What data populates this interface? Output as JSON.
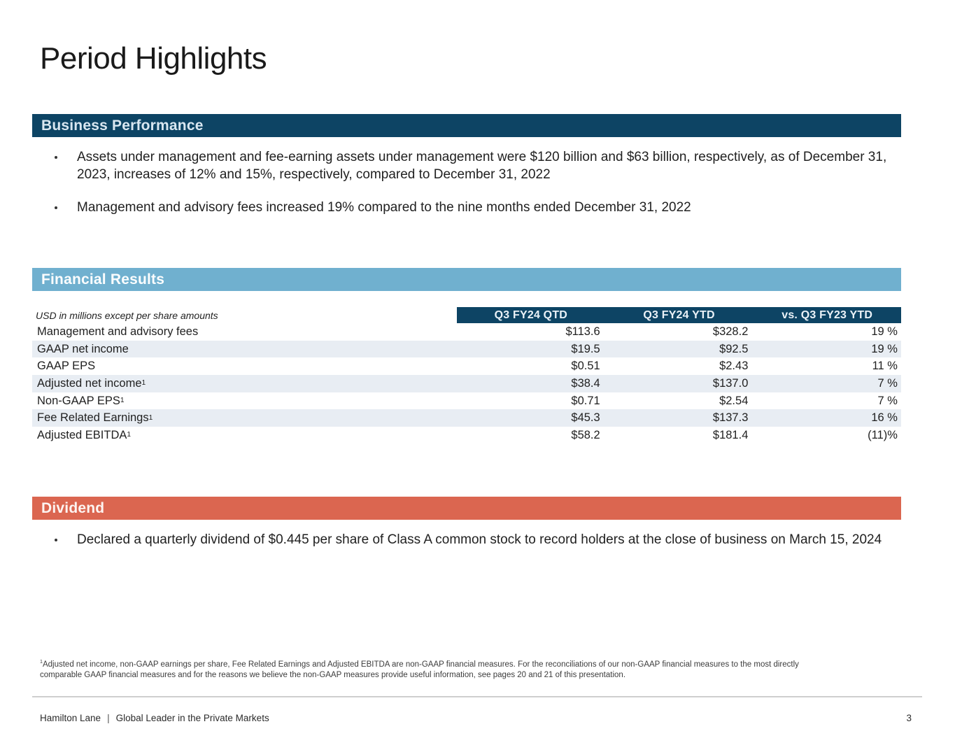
{
  "page": {
    "title": "Period Highlights",
    "page_number": "3"
  },
  "colors": {
    "dark_blue": "#0d4464",
    "light_blue": "#70b0cf",
    "coral": "#db6650",
    "row_stripe": "#e8edf3",
    "band_text": "#d9e7f1",
    "text": "#212121"
  },
  "sections": {
    "business_performance": {
      "title": "Business Performance",
      "bullets": [
        "Assets under management and fee-earning assets under management were $120 billion and $63 billion, respectively, as of December 31, 2023, increases of 12% and 15%, respectively, compared to December 31, 2022",
        "Management and advisory fees increased 19% compared to the nine months ended December 31, 2022"
      ]
    },
    "financial_results": {
      "title": "Financial Results",
      "table": {
        "note": "USD in millions except per share amounts",
        "columns": [
          "Q3 FY24 QTD",
          "Q3 FY24 YTD",
          "vs. Q3 FY23 YTD"
        ],
        "rows": [
          {
            "label": "Management and advisory fees",
            "sup": "",
            "qtd": "$113.6",
            "ytd": "$328.2",
            "vs": "19 %"
          },
          {
            "label": "GAAP net income",
            "sup": "",
            "qtd": "$19.5",
            "ytd": "$92.5",
            "vs": "19 %"
          },
          {
            "label": "GAAP EPS",
            "sup": "",
            "qtd": "$0.51",
            "ytd": "$2.43",
            "vs": "11 %"
          },
          {
            "label": "Adjusted net income",
            "sup": "1",
            "qtd": "$38.4",
            "ytd": "$137.0",
            "vs": "7 %"
          },
          {
            "label": "Non-GAAP EPS",
            "sup": "1",
            "qtd": "$0.71",
            "ytd": "$2.54",
            "vs": "7 %"
          },
          {
            "label": "Fee Related Earnings",
            "sup": "1",
            "qtd": "$45.3",
            "ytd": "$137.3",
            "vs": "16 %"
          },
          {
            "label": "Adjusted EBITDA",
            "sup": "1",
            "qtd": "$58.2",
            "ytd": "$181.4",
            "vs": "(11)%"
          }
        ]
      }
    },
    "dividend": {
      "title": "Dividend",
      "bullets": [
        "Declared a quarterly dividend of $0.445 per share of Class A common stock to record holders at the close of business on March 15, 2024"
      ]
    }
  },
  "footnote": {
    "sup": "1",
    "text": "Adjusted net income, non-GAAP earnings per share, Fee Related Earnings and Adjusted EBITDA are non-GAAP financial measures. For the reconciliations of our non-GAAP financial measures to the most directly comparable GAAP financial measures and for the reasons we believe the non-GAAP measures provide useful information, see pages 20 and 21 of this presentation."
  },
  "footer": {
    "brand": "Hamilton Lane",
    "separator": "|",
    "tagline": "Global Leader in the Private Markets"
  }
}
